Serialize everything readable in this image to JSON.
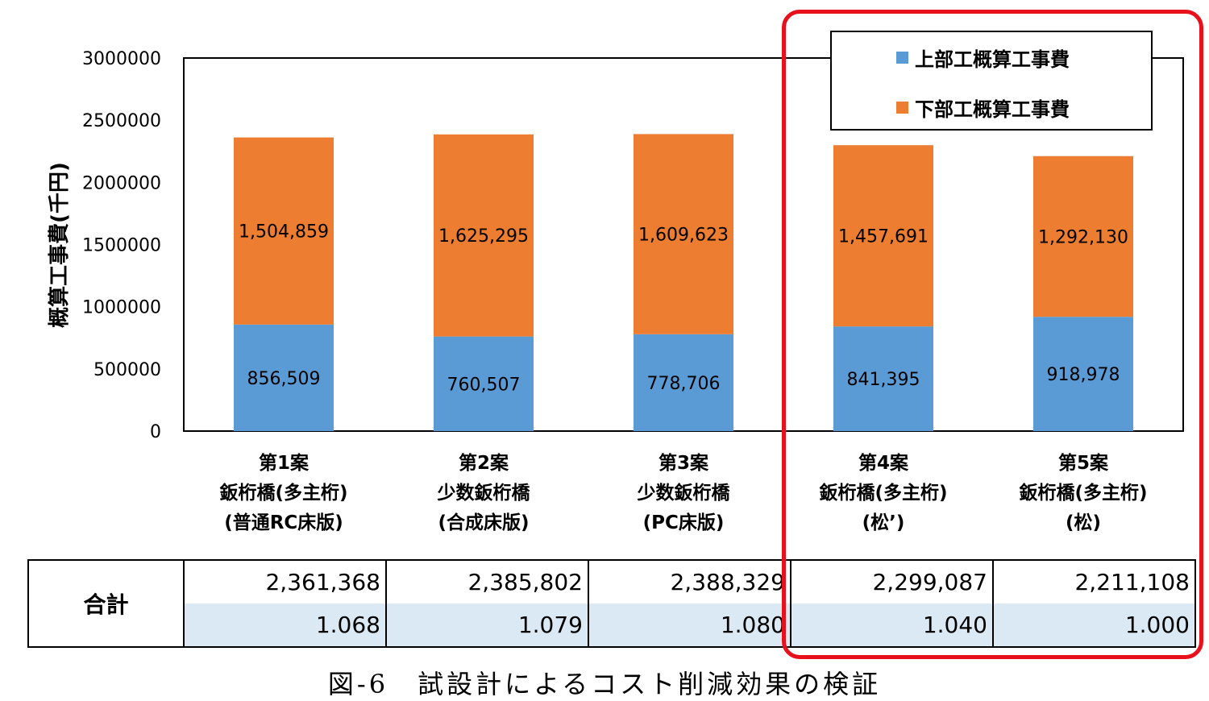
{
  "chart_data": {
    "type": "bar",
    "stacked": true,
    "ylabel": "概算工事費(千円)",
    "ylim": [
      0,
      3000000
    ],
    "yticks": [
      "3000000",
      "2500000",
      "2000000",
      "1500000",
      "1000000",
      "500000",
      "0"
    ],
    "ytick_values": [
      3000000,
      2500000,
      2000000,
      1500000,
      1000000,
      500000,
      0
    ],
    "categories": [
      [
        "第1案",
        "鈑桁橋(多主桁)",
        "(普通RC床版)"
      ],
      [
        "第2案",
        "少数鈑桁橋",
        "(合成床版)"
      ],
      [
        "第3案",
        "少数鈑桁橋",
        "(PC床版)"
      ],
      [
        "第4案",
        "鈑桁橋(多主桁)",
        "(松’)"
      ],
      [
        "第5案",
        "鈑桁橋(多主桁)",
        "(松)"
      ]
    ],
    "series": [
      {
        "name": "上部工概算工事費",
        "color": "#5b9bd5",
        "values": [
          856509,
          760507,
          778706,
          841395,
          918978
        ],
        "labels": [
          "856,509",
          "760,507",
          "778,706",
          "841,395",
          "918,978"
        ]
      },
      {
        "name": "下部工概算工事費",
        "color": "#ed7d31",
        "values": [
          1504859,
          1625295,
          1609623,
          1457691,
          1292130
        ],
        "labels": [
          "1,504,859",
          "1,625,295",
          "1,609,623",
          "1,457,691",
          "1,292,130"
        ]
      }
    ],
    "legend_position": "top-right",
    "grid": false
  },
  "table": {
    "row_label": "合計",
    "totals": [
      "2,361,368",
      "2,385,802",
      "2,388,329",
      "2,299,087",
      "2,211,108"
    ],
    "ratios": [
      "1.068",
      "1.079",
      "1.080",
      "1.040",
      "1.000"
    ]
  },
  "caption": "図-6　試設計によるコスト削減効果の検証",
  "colors": {
    "highlight": "#e8101a",
    "ratio_row": "#dbe9f5"
  }
}
